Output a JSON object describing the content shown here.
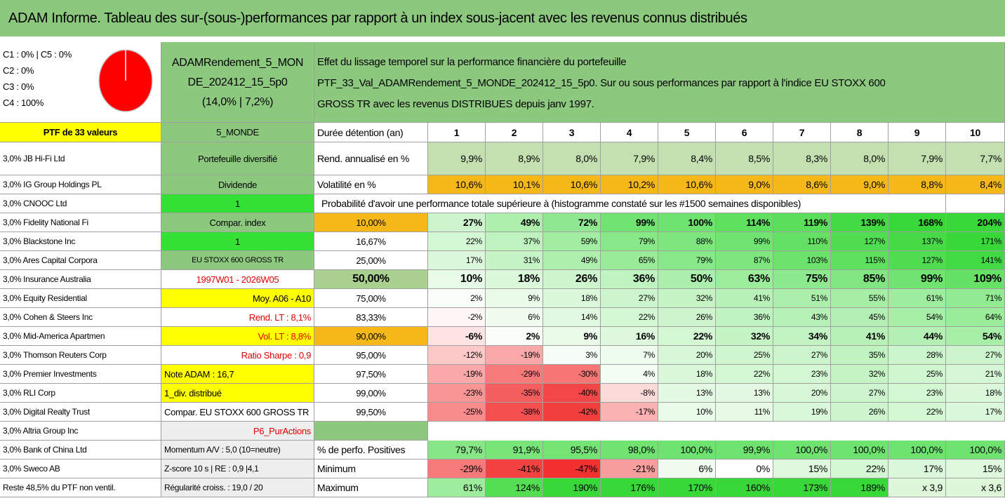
{
  "header": {
    "title": "ADAM Informe. Tableau des sur-(sous-)performances par rapport à un index sous-jacent avec les revenus connus distribués"
  },
  "summary": {
    "compartments": [
      "C1 : 0% | C5 : 0%",
      "C2 : 0%",
      "C3 : 0%",
      "C4 : 100%"
    ],
    "fund": [
      "ADAMRendement_5_MON",
      "DE_202412_15_5p0",
      "(14,0% | 7,2%)"
    ],
    "description": [
      "Effet du lissage temporel sur la performance financière du portefeuille",
      "PTF_33_Val_ADAMRendement_5_MONDE_202412_15_5p0. Sur ou sous performances par rapport à l'indice EU STOXX 600",
      "GROSS TR avec les revenus DISTRIBUES depuis janv 1997."
    ]
  },
  "table": {
    "holdings_header": "PTF de 33 valeurs",
    "holdings": [
      "3,0% JB Hi-Fi Ltd",
      "3,0% IG Group Holdings PL",
      "3,0% CNOOC Ltd",
      "3,0% Fidelity National Fi",
      "3,0% Blackstone Inc",
      "3,0% Ares Capital Corpora",
      "3,0% Insurance Australia",
      "3,0% Equity Residential",
      "3,0% Cohen & Steers Inc",
      "3,0% Mid-America Apartmen",
      "3,0% Thomson Reuters Corp",
      "3,0% Premier Investments",
      "3,0% RLI Corp",
      "3,0% Digital Realty Trust",
      "3,0% Altria Group Inc",
      "3,0% Bank of China Ltd",
      "3,0% Sweco AB",
      "Reste 48,5% du PTF non ventil."
    ],
    "info_header": "5_MONDE",
    "info": [
      "Portefeuille diversifié",
      "Dividende",
      "1",
      "Compar. index",
      "1",
      "EU STOXX 600 GROSS TR",
      "1997W01 - 2026W05",
      "Moy. A06 - A10",
      "Rend. LT : 8,1%",
      "Vol. LT : 8,8%",
      "Ratio Sharpe : 0,9",
      "Note ADAM : 16,7",
      "1_div. distribué",
      "Compar. EU STOXX 600 GROSS TR",
      "P6_PurActions",
      "Momentum A/V : 5,0 (10=neutre)",
      "Z-score 10 s | RE : 0,9 |4,1",
      "Régularité croiss. : 19,0 / 20"
    ],
    "grid_header": {
      "label": "Durée détention (an)",
      "years": [
        1,
        2,
        3,
        4,
        5,
        6,
        7,
        8,
        9,
        10
      ]
    },
    "annualized": {
      "label": "Rend. annualisé en %",
      "values": [
        "9,9%",
        "8,9%",
        "8,0%",
        "7,9%",
        "8,4%",
        "8,5%",
        "8,3%",
        "8,0%",
        "7,9%",
        "7,7%"
      ]
    },
    "volatility": {
      "label": "Volatilité en %",
      "values": [
        "10,6%",
        "10,1%",
        "10,6%",
        "10,2%",
        "10,6%",
        "9,0%",
        "8,6%",
        "9,0%",
        "8,8%",
        "8,4%"
      ]
    },
    "probability_note": "Probabilité d'avoir une performance totale supérieure à (histogramme constaté sur les #1500 semaines disponibles)",
    "percentiles": [
      {
        "label": "10,00%",
        "values": [
          "27%",
          "49%",
          "72%",
          "99%",
          "100%",
          "114%",
          "119%",
          "139%",
          "168%",
          "204%"
        ]
      },
      {
        "label": "16,67%",
        "values": [
          "22%",
          "37%",
          "59%",
          "79%",
          "88%",
          "99%",
          "110%",
          "127%",
          "137%",
          "171%"
        ]
      },
      {
        "label": "25,00%",
        "values": [
          "17%",
          "31%",
          "49%",
          "65%",
          "79%",
          "87%",
          "103%",
          "115%",
          "127%",
          "141%"
        ]
      },
      {
        "label": "50,00%",
        "values": [
          "10%",
          "18%",
          "26%",
          "36%",
          "50%",
          "63%",
          "75%",
          "85%",
          "99%",
          "109%"
        ]
      },
      {
        "label": "75,00%",
        "values": [
          "2%",
          "9%",
          "18%",
          "27%",
          "32%",
          "41%",
          "51%",
          "55%",
          "61%",
          "71%"
        ]
      },
      {
        "label": "83,33%",
        "values": [
          "-2%",
          "6%",
          "14%",
          "22%",
          "26%",
          "36%",
          "43%",
          "45%",
          "54%",
          "64%"
        ]
      },
      {
        "label": "90,00%",
        "values": [
          "-6%",
          "2%",
          "9%",
          "16%",
          "22%",
          "32%",
          "34%",
          "41%",
          "44%",
          "54%"
        ]
      },
      {
        "label": "95,00%",
        "values": [
          "-12%",
          "-19%",
          "3%",
          "7%",
          "20%",
          "25%",
          "27%",
          "35%",
          "28%",
          "27%"
        ]
      },
      {
        "label": "97,50%",
        "values": [
          "-19%",
          "-29%",
          "-30%",
          "4%",
          "18%",
          "22%",
          "23%",
          "32%",
          "25%",
          "21%"
        ]
      },
      {
        "label": "99,00%",
        "values": [
          "-23%",
          "-35%",
          "-40%",
          "-8%",
          "13%",
          "13%",
          "20%",
          "27%",
          "23%",
          "18%"
        ]
      },
      {
        "label": "99,50%",
        "values": [
          "-25%",
          "-38%",
          "-42%",
          "-17%",
          "10%",
          "11%",
          "19%",
          "26%",
          "22%",
          "17%"
        ]
      }
    ],
    "positive": {
      "label": "% de perfo. Positives",
      "values": [
        "79,7%",
        "91,9%",
        "95,5%",
        "98,0%",
        "100,0%",
        "99,9%",
        "100,0%",
        "100,0%",
        "100,0%",
        "100,0%"
      ]
    },
    "minimum": {
      "label": "Minimum",
      "values": [
        "-29%",
        "-41%",
        "-47%",
        "-21%",
        "6%",
        "0%",
        "15%",
        "22%",
        "17%",
        "15%"
      ]
    },
    "maximum": {
      "label": "Maximum",
      "values": [
        "61%",
        "124%",
        "190%",
        "176%",
        "170%",
        "160%",
        "173%",
        "189%",
        "x 3,9",
        "x 3,6"
      ]
    }
  }
}
